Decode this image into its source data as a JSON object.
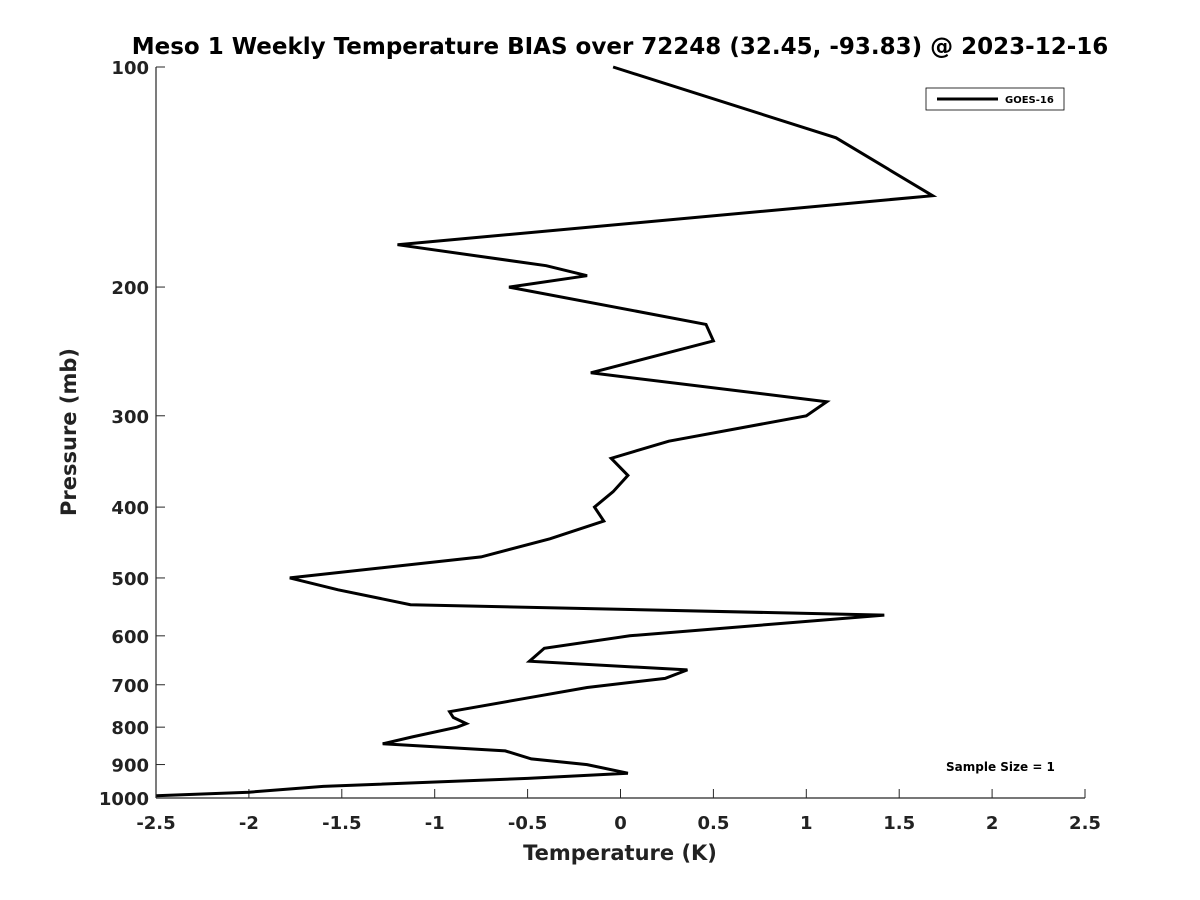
{
  "chart_data": {
    "type": "line",
    "title": "Meso 1 Weekly Temperature BIAS over 72248 (32.45, -93.83) @ 2023-12-16",
    "xlabel": "Temperature (K)",
    "ylabel": "Pressure (mb)",
    "xlim": [
      -2.5,
      2.5
    ],
    "ylim": [
      100,
      1000
    ],
    "y_scale": "log",
    "y_reversed": true,
    "x_ticks": [
      -2.5,
      -2,
      -1.5,
      -1,
      -0.5,
      0,
      0.5,
      1,
      1.5,
      2,
      2.5
    ],
    "x_tick_labels": [
      "-2.5",
      "-2",
      "-1.5",
      "-1",
      "-0.5",
      "0",
      "0.5",
      "1",
      "1.5",
      "2",
      "2.5"
    ],
    "y_ticks": [
      100,
      200,
      300,
      400,
      500,
      600,
      700,
      800,
      900,
      1000
    ],
    "y_tick_labels": [
      "100",
      "200",
      "300",
      "400",
      "500",
      "600",
      "700",
      "800",
      "900",
      "1000"
    ],
    "grid": false,
    "legend_position": "top-right",
    "annotation": "Sample Size = 1",
    "line_color": "#000000",
    "series": [
      {
        "name": "GOES-16",
        "points": [
          {
            "x": -0.04,
            "p": 100
          },
          {
            "x": 1.16,
            "p": 125
          },
          {
            "x": 1.68,
            "p": 150
          },
          {
            "x": -1.2,
            "p": 175
          },
          {
            "x": -0.4,
            "p": 187
          },
          {
            "x": -0.18,
            "p": 193
          },
          {
            "x": -0.6,
            "p": 200
          },
          {
            "x": 0.46,
            "p": 225
          },
          {
            "x": 0.5,
            "p": 237
          },
          {
            "x": -0.16,
            "p": 262
          },
          {
            "x": 1.11,
            "p": 287
          },
          {
            "x": 1.0,
            "p": 300
          },
          {
            "x": 0.26,
            "p": 325
          },
          {
            "x": -0.05,
            "p": 343
          },
          {
            "x": 0.04,
            "p": 362
          },
          {
            "x": -0.04,
            "p": 381
          },
          {
            "x": -0.14,
            "p": 400
          },
          {
            "x": -0.09,
            "p": 418
          },
          {
            "x": -0.38,
            "p": 442
          },
          {
            "x": -0.75,
            "p": 468
          },
          {
            "x": -1.78,
            "p": 500
          },
          {
            "x": -1.52,
            "p": 519
          },
          {
            "x": -1.13,
            "p": 544
          },
          {
            "x": 1.42,
            "p": 562
          },
          {
            "x": 0.05,
            "p": 600
          },
          {
            "x": -0.41,
            "p": 624
          },
          {
            "x": -0.49,
            "p": 650
          },
          {
            "x": 0.36,
            "p": 668
          },
          {
            "x": 0.24,
            "p": 686
          },
          {
            "x": -0.18,
            "p": 706
          },
          {
            "x": -0.45,
            "p": 726
          },
          {
            "x": -0.92,
            "p": 762
          },
          {
            "x": -0.9,
            "p": 776
          },
          {
            "x": -0.83,
            "p": 791
          },
          {
            "x": -0.88,
            "p": 800
          },
          {
            "x": -1.12,
            "p": 825
          },
          {
            "x": -1.28,
            "p": 843
          },
          {
            "x": -0.62,
            "p": 862
          },
          {
            "x": -0.48,
            "p": 884
          },
          {
            "x": -0.18,
            "p": 900
          },
          {
            "x": 0.04,
            "p": 925
          },
          {
            "x": -0.5,
            "p": 940
          },
          {
            "x": -1.6,
            "p": 964
          },
          {
            "x": -2.0,
            "p": 982
          },
          {
            "x": -2.5,
            "p": 993
          }
        ]
      }
    ]
  }
}
